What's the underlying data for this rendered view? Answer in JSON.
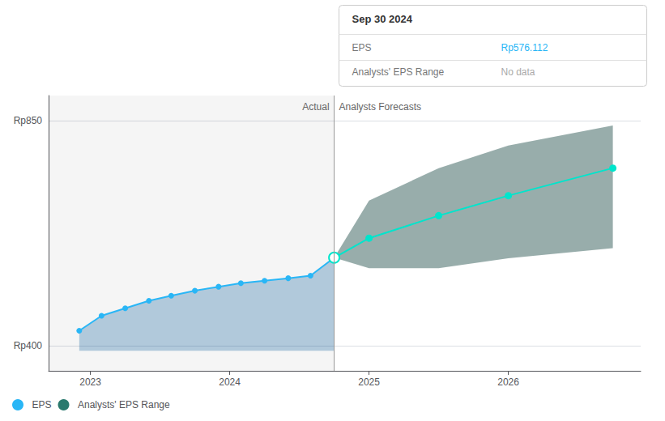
{
  "chart_data": {
    "type": "line",
    "xlim": [
      2022.7,
      2026.95
    ],
    "xticks": [
      2023,
      2024,
      2025,
      2026
    ],
    "ylim": [
      350,
      900
    ],
    "yticks": [
      {
        "value": 400,
        "label": "Rp400"
      },
      {
        "value": 850,
        "label": "Rp850"
      }
    ],
    "grid": true,
    "legend": "lower left",
    "divider_x": 2024.75,
    "annotations": [
      "Actual",
      "Analysts Forecasts"
    ],
    "series": [
      {
        "name": "EPS",
        "color": "#29b6f6",
        "marker": "circle",
        "x": [
          2022.92,
          2023.08,
          2023.25,
          2023.42,
          2023.58,
          2023.75,
          2023.92,
          2024.08,
          2024.25,
          2024.42,
          2024.58,
          2024.75
        ],
        "values": [
          430,
          460,
          475,
          490,
          500,
          510,
          518,
          525,
          530,
          535,
          540,
          576
        ],
        "fill_lower": [
          390,
          390,
          390,
          390,
          390,
          390,
          390,
          390,
          390,
          390,
          390,
          390
        ],
        "fill_color": "#1565a0"
      },
      {
        "name": "EPS",
        "color": "#00e5cc",
        "marker": "circle",
        "x": [
          2024.75,
          2025.0,
          2025.5,
          2026.0,
          2026.75
        ],
        "values": [
          576,
          615,
          660,
          700,
          755
        ]
      },
      {
        "name": "Analysts' EPS Range",
        "type": "range",
        "color": "#1a4a44",
        "legend_color": "#2a7a6e",
        "x": [
          2024.75,
          2025.0,
          2025.5,
          2026.0,
          2026.75
        ],
        "upper": [
          576,
          690,
          755,
          800,
          840
        ],
        "lower": [
          576,
          555,
          555,
          575,
          595
        ]
      }
    ],
    "tooltip": {
      "title": "Sep 30 2024",
      "rows": [
        {
          "label": "EPS",
          "value": "Rp576.112",
          "color": "#29b6f6"
        },
        {
          "label": "Analysts' EPS Range",
          "value": "No data",
          "color": "#aaaaaa"
        }
      ]
    }
  }
}
